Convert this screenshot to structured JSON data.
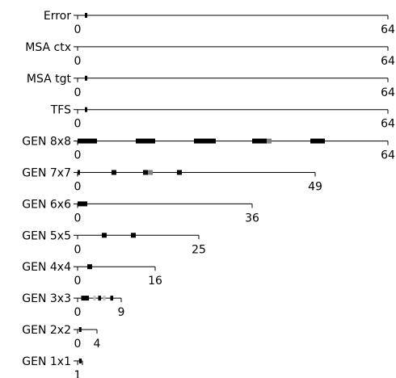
{
  "chart_data": {
    "type": "bar",
    "colors": {
      "full": "#000000",
      "partial": "#808080",
      "faint": "#c0c0c0"
    },
    "rows": [
      {
        "label": "Error",
        "max": 64,
        "blocks": [
          {
            "start": 3,
            "width": 1,
            "tone": "full"
          }
        ]
      },
      {
        "label": "MSA ctx",
        "max": 64,
        "blocks": []
      },
      {
        "label": "MSA tgt",
        "max": 64,
        "blocks": [
          {
            "start": 3,
            "width": 1,
            "tone": "full"
          }
        ]
      },
      {
        "label": "TFS",
        "max": 64,
        "blocks": [
          {
            "start": 3,
            "width": 1,
            "tone": "full"
          }
        ]
      },
      {
        "label": "GEN 8x8",
        "max": 64,
        "blocks": [
          {
            "start": 0,
            "width": 8,
            "tone": "full"
          },
          {
            "start": 24,
            "width": 8,
            "tone": "full"
          },
          {
            "start": 48,
            "width": 9,
            "tone": "full"
          },
          {
            "start": 72,
            "width": 6,
            "tone": "full"
          },
          {
            "start": 78,
            "width": 2,
            "tone": "partial"
          },
          {
            "start": 96,
            "width": 6,
            "tone": "full"
          }
        ]
      },
      {
        "label": "GEN 7x7",
        "max": 49,
        "blocks": [
          {
            "start": 0,
            "width": 1,
            "tone": "full"
          },
          {
            "start": 14,
            "width": 2,
            "tone": "full"
          },
          {
            "start": 27,
            "width": 2,
            "tone": "full"
          },
          {
            "start": 29,
            "width": 2,
            "tone": "partial"
          },
          {
            "start": 41,
            "width": 2,
            "tone": "full"
          }
        ]
      },
      {
        "label": "GEN 6x6",
        "max": 36,
        "blocks": [
          {
            "start": 0,
            "width": 4,
            "tone": "full"
          }
        ]
      },
      {
        "label": "GEN 5x5",
        "max": 25,
        "blocks": [
          {
            "start": 5,
            "width": 1,
            "tone": "full"
          },
          {
            "start": 11,
            "width": 1,
            "tone": "full"
          }
        ]
      },
      {
        "label": "GEN 4x4",
        "max": 16,
        "blocks": [
          {
            "start": 2,
            "width": 1,
            "tone": "full"
          }
        ]
      },
      {
        "label": "GEN 3x3",
        "max": 9,
        "blocks": [
          {
            "start": 0.75,
            "width": 1.6,
            "tone": "full"
          },
          {
            "start": 3.25,
            "width": 0.5,
            "tone": "faint"
          },
          {
            "start": 4.25,
            "width": 0.6,
            "tone": "full"
          },
          {
            "start": 5.25,
            "width": 0.4,
            "tone": "faint"
          },
          {
            "start": 6.75,
            "width": 0.6,
            "tone": "full"
          }
        ]
      },
      {
        "label": "GEN 2x2",
        "max": 4,
        "blocks": [
          {
            "start": 0.3,
            "width": 0.45,
            "tone": "full"
          }
        ]
      },
      {
        "label": "GEN 1x1",
        "max": 1,
        "blocks": [
          {
            "start": 0.3,
            "width": 0.55,
            "tone": "full"
          }
        ]
      }
    ]
  }
}
